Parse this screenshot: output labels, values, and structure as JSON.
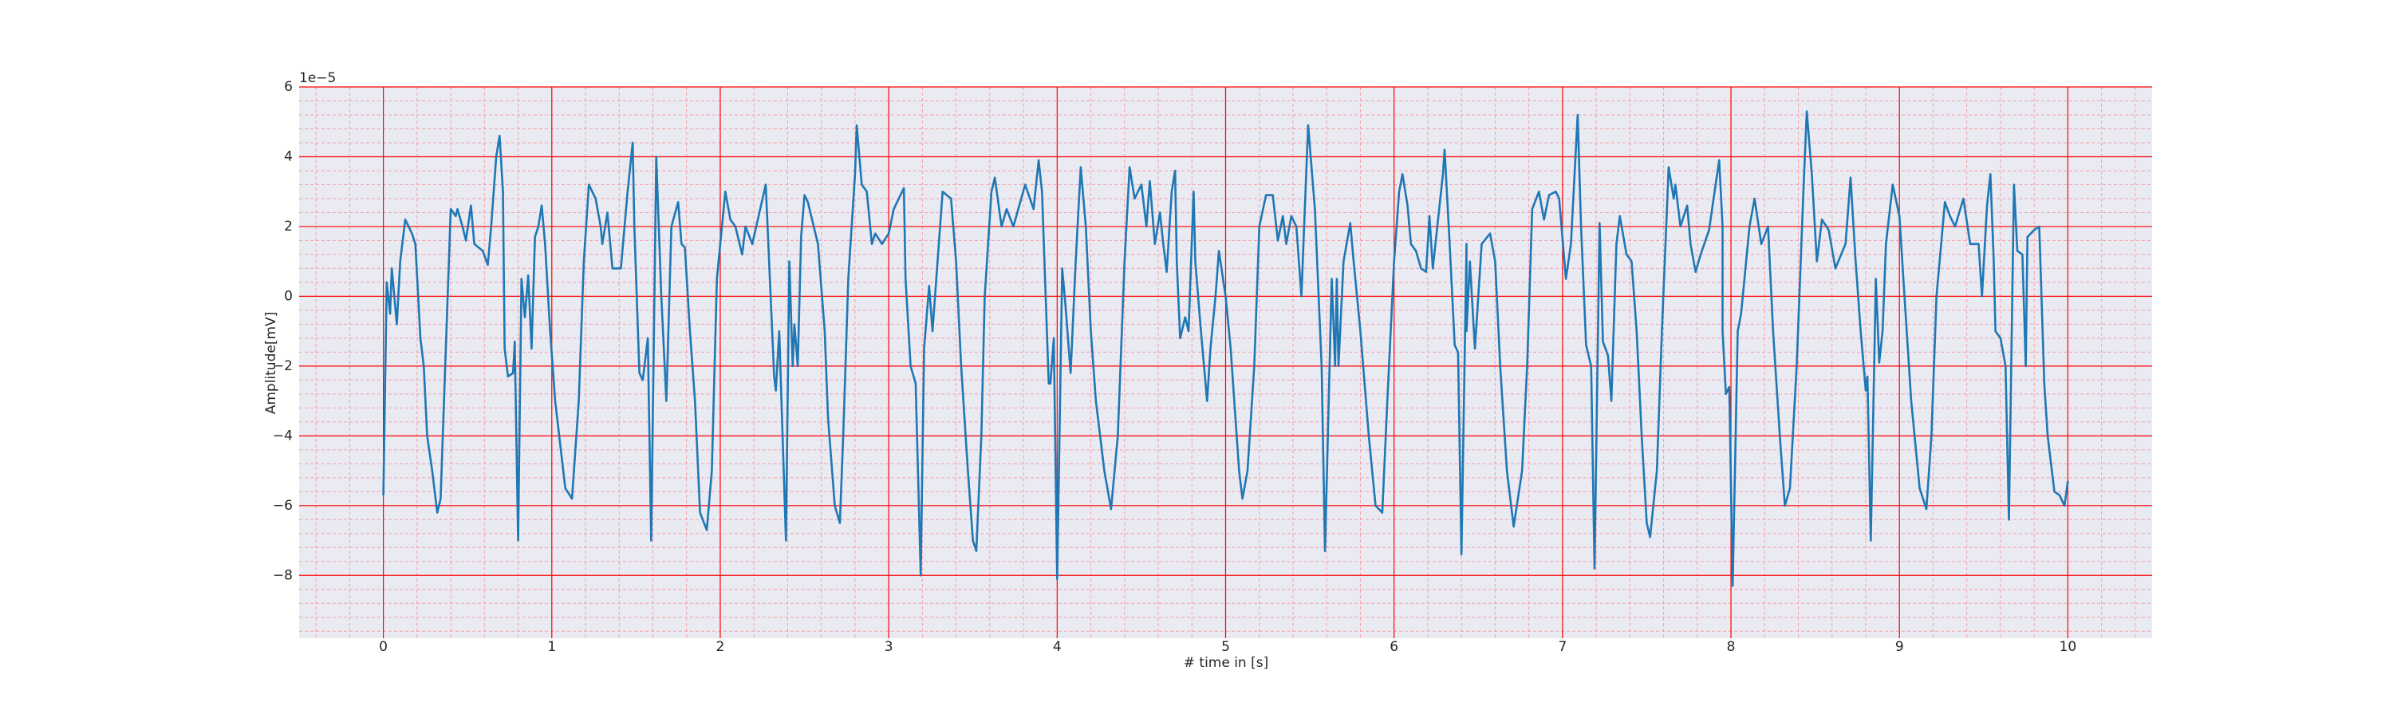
{
  "chart_data": {
    "type": "line",
    "xlabel": "# time in [s]",
    "ylabel": "Amplitude[mV]",
    "y_offset_label": "1e−5",
    "xlim": [
      -0.5,
      10.5
    ],
    "xticks": [
      0,
      1,
      2,
      3,
      4,
      5,
      6,
      7,
      8,
      9,
      10
    ],
    "ylim": [
      -9.8,
      6
    ],
    "yticks": [
      {
        "value": -8,
        "label": "−8"
      },
      {
        "value": -6,
        "label": "−6"
      },
      {
        "value": -4,
        "label": "−4"
      },
      {
        "value": -2,
        "label": "−2"
      },
      0,
      2,
      4,
      6
    ],
    "grid": true,
    "minor_grid": true,
    "grid_color": "#ff0000",
    "minor_grid_color": "#f4a0a8",
    "background": "#eaeaf2",
    "x": [
      0,
      0.02,
      0.04,
      0.05,
      0.08,
      0.1,
      0.13,
      0.17,
      0.19,
      0.22,
      0.24,
      0.26,
      0.29,
      0.32,
      0.34,
      0.36,
      0.4,
      0.43,
      0.44,
      0.47,
      0.49,
      0.52,
      0.54,
      0.59,
      0.62,
      0.64,
      0.67,
      0.69,
      0.71,
      0.72,
      0.74,
      0.77,
      0.78,
      0.8,
      0.82,
      0.84,
      0.86,
      0.88,
      0.9,
      0.92,
      0.94,
      0.96,
      0.99,
      1.02,
      1.08,
      1.12,
      1.16,
      1.19,
      1.22,
      1.26,
      1.29,
      1.3,
      1.33,
      1.36,
      1.41,
      1.45,
      1.48,
      1.49,
      1.52,
      1.54,
      1.57,
      1.59,
      1.62,
      1.65,
      1.68,
      1.71,
      1.75,
      1.77,
      1.79,
      1.82,
      1.85,
      1.88,
      1.92,
      1.95,
      1.98,
      2.03,
      2.06,
      2.09,
      2.13,
      2.15,
      2.19,
      2.27,
      2.29,
      2.32,
      2.33,
      2.35,
      2.39,
      2.41,
      2.43,
      2.44,
      2.46,
      2.48,
      2.5,
      2.52,
      2.58,
      2.62,
      2.64,
      2.68,
      2.71,
      2.73,
      2.76,
      2.8,
      2.81,
      2.84,
      2.87,
      2.9,
      2.92,
      2.96,
      3.0,
      3.03,
      3.09,
      3.1,
      3.13,
      3.16,
      3.19,
      3.21,
      3.24,
      3.26,
      3.32,
      3.37,
      3.4,
      3.43,
      3.47,
      3.5,
      3.52,
      3.55,
      3.57,
      3.61,
      3.63,
      3.67,
      3.7,
      3.74,
      3.81,
      3.86,
      3.89,
      3.91,
      3.95,
      3.96,
      3.98,
      4.0,
      4.03,
      4.05,
      4.08,
      4.11,
      4.14,
      4.17,
      4.2,
      4.23,
      4.28,
      4.32,
      4.36,
      4.4,
      4.43,
      4.46,
      4.5,
      4.53,
      4.55,
      4.58,
      4.61,
      4.63,
      4.65,
      4.68,
      4.7,
      4.71,
      4.73,
      4.76,
      4.78,
      4.81,
      4.82,
      4.85,
      4.89,
      4.91,
      4.94,
      4.96,
      5.0,
      5.03,
      5.08,
      5.1,
      5.13,
      5.17,
      5.2,
      5.24,
      5.28,
      5.31,
      5.34,
      5.36,
      5.39,
      5.42,
      5.45,
      5.47,
      5.49,
      5.53,
      5.57,
      5.59,
      5.63,
      5.65,
      5.66,
      5.67,
      5.7,
      5.74,
      5.76,
      5.8,
      5.85,
      5.89,
      5.93,
      5.96,
      6.0,
      6.03,
      6.05,
      6.08,
      6.1,
      6.13,
      6.16,
      6.19,
      6.21,
      6.23,
      6.29,
      6.3,
      6.33,
      6.36,
      6.38,
      6.4,
      6.43,
      6.43,
      6.45,
      6.48,
      6.52,
      6.57,
      6.6,
      6.63,
      6.67,
      6.71,
      6.76,
      6.79,
      6.82,
      6.86,
      6.89,
      6.92,
      6.96,
      6.98,
      7.02,
      7.05,
      7.09,
      7.11,
      7.14,
      7.17,
      7.19,
      7.22,
      7.24,
      7.27,
      7.29,
      7.32,
      7.34,
      7.38,
      7.41,
      7.44,
      7.47,
      7.5,
      7.52,
      7.56,
      7.59,
      7.63,
      7.66,
      7.67,
      7.7,
      7.74,
      7.76,
      7.79,
      7.82,
      7.87,
      7.93,
      7.95,
      7.95,
      7.97,
      7.99,
      8.01,
      8.04,
      8.06,
      8.11,
      8.14,
      8.18,
      8.22,
      8.25,
      8.29,
      8.32,
      8.35,
      8.39,
      8.43,
      8.45,
      8.48,
      8.51,
      8.54,
      8.58,
      8.62,
      8.68,
      8.71,
      8.74,
      8.77,
      8.8,
      8.81,
      8.83,
      8.86,
      8.88,
      8.9,
      8.92,
      8.96,
      9.0,
      9.03,
      9.07,
      9.12,
      9.16,
      9.19,
      9.22,
      9.27,
      9.3,
      9.33,
      9.38,
      9.42,
      9.47,
      9.49,
      9.52,
      9.54,
      9.56,
      9.57,
      9.6,
      9.63,
      9.65,
      9.68,
      9.7,
      9.73,
      9.75,
      9.76,
      9.8,
      9.83,
      9.86,
      9.88,
      9.92,
      9.95,
      9.98,
      10.0
    ],
    "series": [
      {
        "color": "#1f77b4",
        "values": [
          -5.7,
          0.4,
          -0.5,
          0.8,
          -0.8,
          1,
          2.2,
          1.8,
          1.5,
          -1.2,
          -2,
          -4,
          -5,
          -6.2,
          -5.8,
          -3,
          2.5,
          2.3,
          2.5,
          2,
          1.6,
          2.6,
          1.5,
          1.3,
          0.9,
          2,
          4,
          4.6,
          3,
          -1.5,
          -2.3,
          -2.2,
          -1.3,
          -7,
          0.5,
          -0.6,
          0.6,
          -1.5,
          1.7,
          2,
          2.6,
          1.5,
          -1,
          -3,
          -5.5,
          -5.8,
          -3,
          1,
          3.2,
          2.8,
          2,
          1.5,
          2.4,
          0.8,
          0.8,
          3,
          4.4,
          2,
          -2.2,
          -2.4,
          -1.2,
          -7,
          4,
          0,
          -3,
          2,
          2.7,
          1.5,
          1.4,
          -1,
          -3,
          -6.2,
          -6.7,
          -5,
          0.5,
          3,
          2.2,
          2,
          1.2,
          2,
          1.5,
          3.2,
          1,
          -2.3,
          -2.7,
          -1,
          -7,
          1,
          -2,
          -0.8,
          -2,
          1.7,
          2.9,
          2.7,
          1.5,
          -1,
          -3.5,
          -6,
          -6.5,
          -4,
          0.5,
          3.5,
          4.9,
          3.2,
          3,
          1.5,
          1.8,
          1.5,
          1.8,
          2.5,
          3.1,
          0.5,
          -2,
          -2.5,
          -8,
          -1.5,
          0.3,
          -1,
          3,
          2.8,
          1,
          -2,
          -5,
          -7,
          -7.3,
          -4,
          0,
          3,
          3.4,
          2,
          2.5,
          2,
          3.2,
          2.5,
          3.9,
          3,
          -2.5,
          -2.5,
          -1.2,
          -8.1,
          0.8,
          -0.3,
          -2.2,
          1,
          3.7,
          2,
          -1,
          -3,
          -5,
          -6.1,
          -4,
          1,
          3.7,
          2.8,
          3.2,
          2,
          3.3,
          1.5,
          2.4,
          1.5,
          0.7,
          3,
          3.6,
          1,
          -1.2,
          -0.6,
          -1,
          3,
          1,
          -0.8,
          -3,
          -1.5,
          0,
          1.3,
          0,
          -1.5,
          -5,
          -5.8,
          -5,
          -2,
          2,
          2.9,
          2.9,
          1.6,
          2.3,
          1.5,
          2.3,
          2,
          0,
          2.5,
          4.9,
          2.5,
          -2,
          -7.3,
          0.5,
          -2,
          0.5,
          -2,
          1,
          2.1,
          1,
          -1,
          -4,
          -6,
          -6.2,
          -3,
          1,
          3,
          3.5,
          2.6,
          1.5,
          1.3,
          0.8,
          0.7,
          2.3,
          0.8,
          3.5,
          4.2,
          1.5,
          -1.4,
          -1.6,
          -7.4,
          1.5,
          -1,
          1,
          -1.5,
          1.5,
          1.8,
          1,
          -2,
          -5,
          -6.6,
          -5,
          -2,
          2.5,
          3,
          2.2,
          2.9,
          3,
          2.8,
          0.5,
          1.5,
          5.2,
          2,
          -1.4,
          -2,
          -7.8,
          2.1,
          -1.3,
          -1.7,
          -3,
          1.5,
          2.3,
          1.2,
          1,
          -1,
          -4,
          -6.5,
          -6.9,
          -5,
          -1,
          3.7,
          2.8,
          3.2,
          2,
          2.6,
          1.5,
          0.7,
          1.2,
          1.9,
          3.9,
          2,
          -1,
          -2.8,
          -2.6,
          -8.3,
          -1,
          -0.5,
          2,
          2.8,
          1.5,
          2,
          -1,
          -4,
          -6,
          -5.5,
          -2,
          3,
          5.3,
          3.5,
          1,
          2.2,
          1.9,
          0.8,
          1.5,
          3.4,
          1,
          -1,
          -2.7,
          -2.3,
          -7,
          0.5,
          -1.9,
          -1,
          1.5,
          3.2,
          2.3,
          0,
          -3,
          -5.5,
          -6.1,
          -4,
          0,
          2.7,
          2.3,
          2,
          2.8,
          1.5,
          1.5,
          0,
          2.6,
          3.5,
          1,
          -1,
          -1.2,
          -2,
          -6.4,
          3.2,
          1.3,
          1.2,
          -2,
          1.7,
          1.9,
          2,
          -2.5,
          -4,
          -5.6,
          -5.7,
          -6,
          -5.3
        ]
      }
    ]
  }
}
